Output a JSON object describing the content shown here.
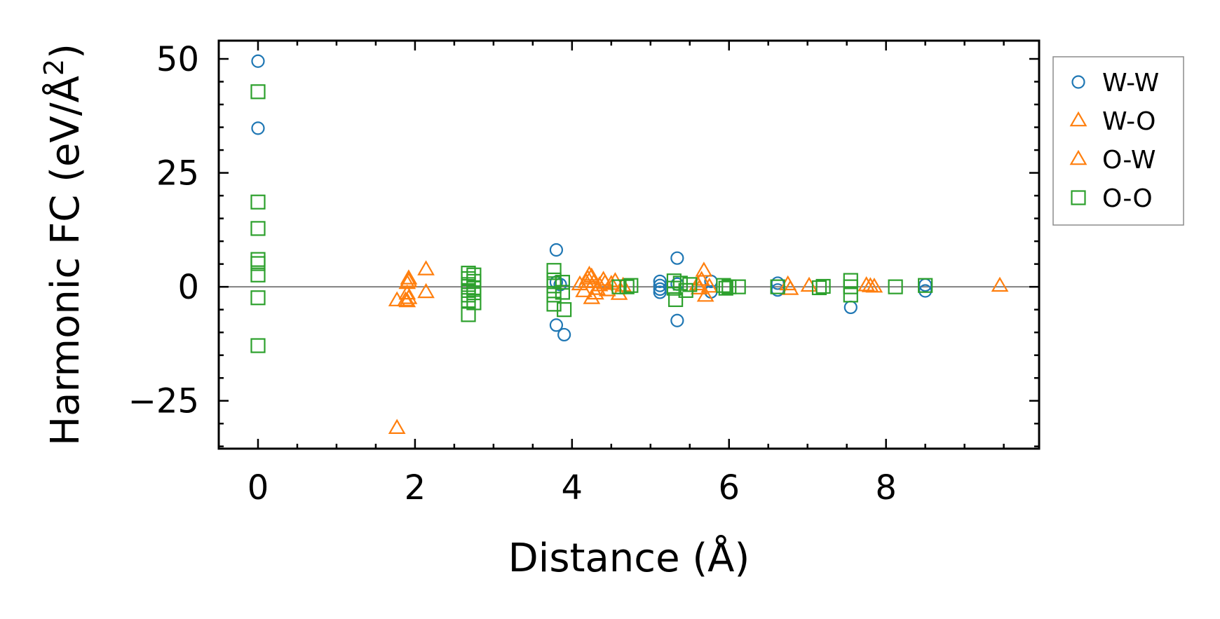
{
  "chart_data": {
    "type": "scatter",
    "xlabel": "Distance (Å)",
    "ylabel": "Harmonic FC (eV/Å",
    "ylabel_sup": "2",
    "ylabel_close": ")",
    "xlim": [
      -0.5,
      9.95
    ],
    "ylim": [
      -35.5,
      54
    ],
    "xticks": [
      0,
      2,
      4,
      6,
      8
    ],
    "xtick_labels": [
      "0",
      "2",
      "4",
      "6",
      "8"
    ],
    "yticks": [
      -25,
      0,
      25,
      50
    ],
    "ytick_labels": [
      "−25",
      "0",
      "25",
      "50"
    ],
    "zero_line": true,
    "grid": false,
    "legend_position": "outside-right-top",
    "series": [
      {
        "name": "W-W",
        "marker": "circle",
        "color": "#1f77b4",
        "points": [
          [
            0.0,
            49.5
          ],
          [
            0.0,
            34.8
          ],
          [
            3.8,
            8.1
          ],
          [
            3.8,
            -8.4
          ],
          [
            3.9,
            -10.5
          ],
          [
            3.8,
            1.0
          ],
          [
            3.85,
            0.5
          ],
          [
            5.12,
            1.2
          ],
          [
            5.12,
            -1.2
          ],
          [
            5.12,
            0.3
          ],
          [
            5.12,
            -0.5
          ],
          [
            5.34,
            6.3
          ],
          [
            5.34,
            -7.4
          ],
          [
            5.34,
            0.6
          ],
          [
            5.77,
            1.2
          ],
          [
            5.77,
            -1.1
          ],
          [
            6.62,
            0.8
          ],
          [
            6.62,
            -0.7
          ],
          [
            7.55,
            -4.5
          ],
          [
            8.5,
            -0.9
          ],
          [
            8.5,
            0.4
          ]
        ]
      },
      {
        "name": "W-O",
        "marker": "triangle",
        "color": "#ff7f0e",
        "points": [
          [
            1.77,
            -31.0
          ],
          [
            1.77,
            -3.0
          ],
          [
            1.88,
            -3.0
          ],
          [
            1.9,
            -1.5
          ],
          [
            1.9,
            0.8
          ],
          [
            1.92,
            1.8
          ],
          [
            1.92,
            -2.5
          ],
          [
            2.14,
            3.8
          ],
          [
            2.14,
            -1.2
          ],
          [
            4.1,
            0.5
          ],
          [
            4.15,
            -1.0
          ],
          [
            4.2,
            1.8
          ],
          [
            4.22,
            2.6
          ],
          [
            4.25,
            -2.5
          ],
          [
            4.28,
            1.0
          ],
          [
            4.3,
            -1.5
          ],
          [
            4.35,
            0.3
          ],
          [
            4.4,
            1.5
          ],
          [
            4.45,
            -0.8
          ],
          [
            4.5,
            0.6
          ],
          [
            4.55,
            1.2
          ],
          [
            4.6,
            -1.6
          ],
          [
            4.65,
            0.2
          ],
          [
            5.6,
            0.5
          ],
          [
            5.65,
            1.5
          ],
          [
            5.68,
            3.5
          ],
          [
            5.7,
            -2.0
          ],
          [
            5.75,
            0.0
          ],
          [
            6.75,
            0.5
          ],
          [
            6.78,
            -0.5
          ],
          [
            7.02,
            0.2
          ],
          [
            7.75,
            0.3
          ],
          [
            7.8,
            0.1
          ],
          [
            7.85,
            0.0
          ],
          [
            9.45,
            0.2
          ]
        ]
      },
      {
        "name": "O-W",
        "marker": "triangle",
        "color": "#ff7f0e",
        "points": [
          [
            1.9,
            -3.2
          ],
          [
            1.92,
            1.2
          ],
          [
            4.18,
            1.0
          ],
          [
            4.25,
            2.2
          ],
          [
            4.32,
            -0.5
          ],
          [
            4.42,
            0.8
          ],
          [
            5.62,
            -0.4
          ]
        ]
      },
      {
        "name": "O-O",
        "marker": "square",
        "color": "#2ca02c",
        "points": [
          [
            0.0,
            42.8
          ],
          [
            0.0,
            18.6
          ],
          [
            0.0,
            12.8
          ],
          [
            0.0,
            6.0
          ],
          [
            0.0,
            5.1
          ],
          [
            0.0,
            2.6
          ],
          [
            0.0,
            -2.4
          ],
          [
            0.0,
            -12.9
          ],
          [
            2.68,
            3.0
          ],
          [
            2.68,
            1.8
          ],
          [
            2.68,
            0.5
          ],
          [
            2.68,
            -0.8
          ],
          [
            2.68,
            -1.8
          ],
          [
            2.68,
            -3.0
          ],
          [
            2.68,
            -6.1
          ],
          [
            2.75,
            2.6
          ],
          [
            2.75,
            1.2
          ],
          [
            2.75,
            -0.2
          ],
          [
            2.75,
            -1.3
          ],
          [
            2.75,
            -3.5
          ],
          [
            3.77,
            3.6
          ],
          [
            3.77,
            1.5
          ],
          [
            3.77,
            0.2
          ],
          [
            3.77,
            -1.8
          ],
          [
            3.77,
            -3.8
          ],
          [
            3.88,
            1.0
          ],
          [
            3.88,
            -1.2
          ],
          [
            3.9,
            -5.0
          ],
          [
            4.6,
            0.0
          ],
          [
            4.7,
            0.0
          ],
          [
            4.75,
            0.3
          ],
          [
            5.3,
            1.3
          ],
          [
            5.3,
            -0.3
          ],
          [
            5.32,
            -2.8
          ],
          [
            5.38,
            0.8
          ],
          [
            5.45,
            -0.8
          ],
          [
            5.5,
            0.5
          ],
          [
            5.93,
            0.3
          ],
          [
            5.96,
            -0.3
          ],
          [
            6.0,
            0.0
          ],
          [
            6.12,
            0.0
          ],
          [
            6.62,
            0.0
          ],
          [
            7.15,
            -0.2
          ],
          [
            7.2,
            0.1
          ],
          [
            7.55,
            1.4
          ],
          [
            7.55,
            -1.8
          ],
          [
            7.55,
            0.0
          ],
          [
            8.12,
            0.0
          ],
          [
            8.5,
            0.3
          ]
        ]
      }
    ],
    "legend": [
      {
        "label": "W-W",
        "marker": "circle",
        "color": "#1f77b4"
      },
      {
        "label": "W-O",
        "marker": "triangle",
        "color": "#ff7f0e"
      },
      {
        "label": "O-W",
        "marker": "triangle",
        "color": "#ff7f0e"
      },
      {
        "label": "O-O",
        "marker": "square",
        "color": "#2ca02c"
      }
    ]
  }
}
